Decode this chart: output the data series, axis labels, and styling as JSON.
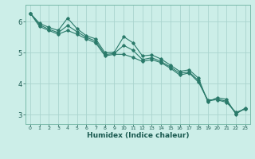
{
  "xlabel": "Humidex (Indice chaleur)",
  "bg_color": "#cceee8",
  "grid_color": "#aad4ce",
  "line_color": "#2a7a6a",
  "xlim": [
    -0.5,
    23.5
  ],
  "ylim": [
    2.7,
    6.55
  ],
  "yticks": [
    3,
    4,
    5,
    6
  ],
  "xticks": [
    0,
    1,
    2,
    3,
    4,
    5,
    6,
    7,
    8,
    9,
    10,
    11,
    12,
    13,
    14,
    15,
    16,
    17,
    18,
    19,
    20,
    21,
    22,
    23
  ],
  "series": [
    [
      6.28,
      5.95,
      5.82,
      5.72,
      6.12,
      5.78,
      5.55,
      5.45,
      5.0,
      5.02,
      5.52,
      5.32,
      4.9,
      4.93,
      4.8,
      4.6,
      4.4,
      4.45,
      4.18,
      3.42,
      3.55,
      3.5,
      3.02,
      3.22
    ],
    [
      6.28,
      5.85,
      5.72,
      5.6,
      5.72,
      5.6,
      5.45,
      5.32,
      4.9,
      4.95,
      4.95,
      4.85,
      4.72,
      4.78,
      4.68,
      4.5,
      4.28,
      4.35,
      4.05,
      3.48,
      3.48,
      3.4,
      3.08,
      3.18
    ],
    [
      6.28,
      5.9,
      5.76,
      5.65,
      5.88,
      5.68,
      5.5,
      5.38,
      4.94,
      4.98,
      5.24,
      5.08,
      4.78,
      4.84,
      4.72,
      4.54,
      4.34,
      4.38,
      4.1,
      3.44,
      3.5,
      3.44,
      3.04,
      3.2
    ]
  ]
}
